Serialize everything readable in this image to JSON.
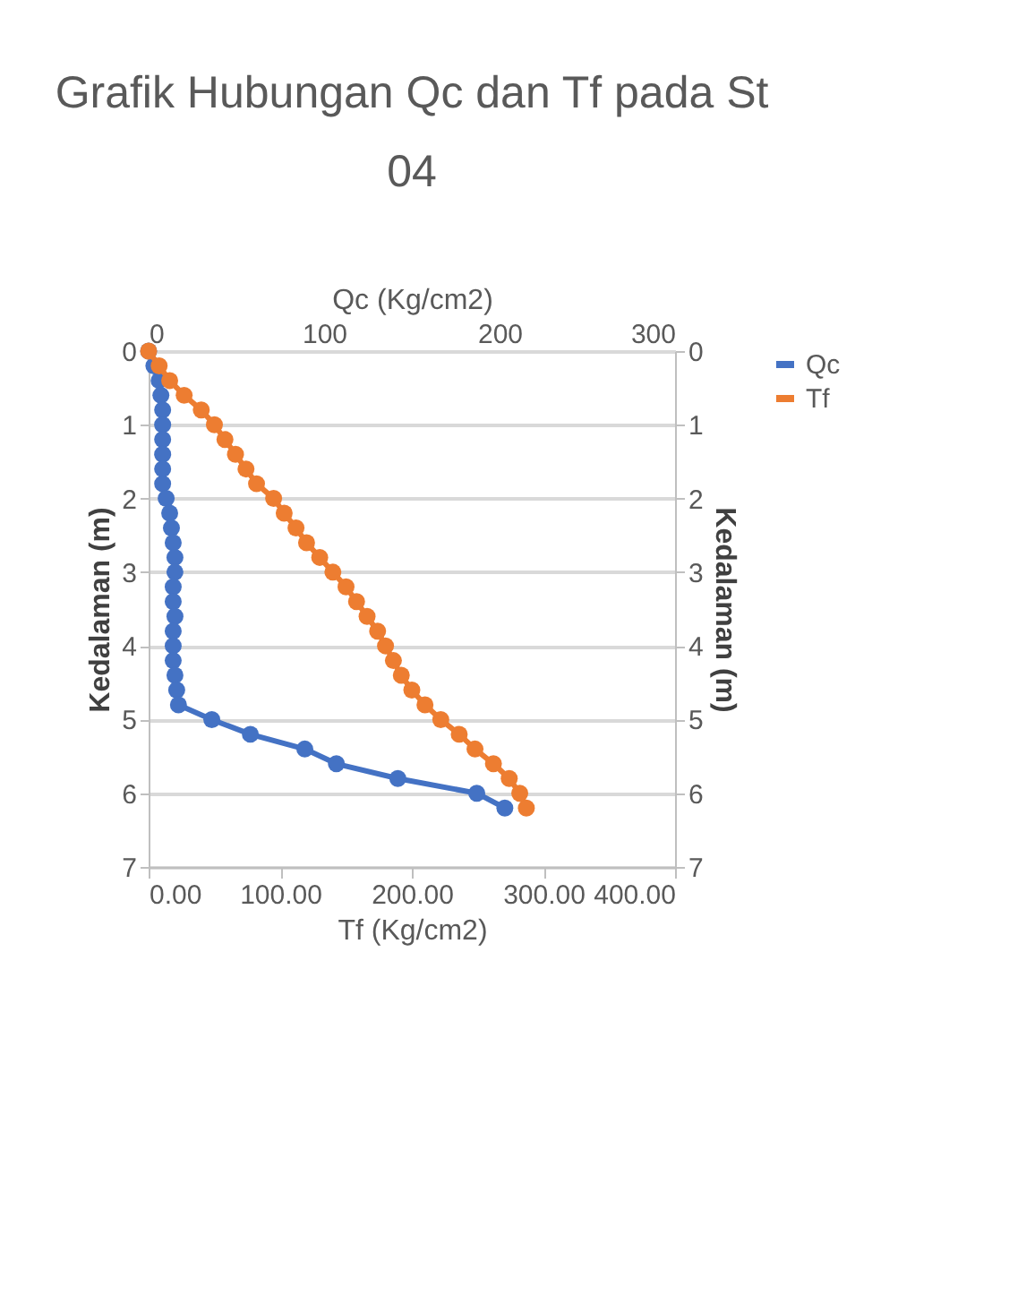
{
  "chart_data": {
    "type": "line",
    "orientation": "horizontal",
    "title": "Grafik Hubungan Qc dan Tf pada St 04",
    "xlabel": "Tf (Kg/cm2)",
    "x2label": "Qc (Kg/cm2)",
    "ylabel": "Kedalaman (m)",
    "y2label": "Kedalaman (m)",
    "x": [
      0,
      0.2,
      0.4,
      0.6,
      0.8,
      1.0,
      1.2,
      1.4,
      1.6,
      1.8,
      2.0,
      2.2,
      2.4,
      2.6,
      2.8,
      3.0,
      3.2,
      3.4,
      3.6,
      3.8,
      4.0,
      4.2,
      4.4,
      4.6,
      4.8,
      5.0,
      5.2,
      5.4,
      5.6,
      5.8,
      6.0,
      6.2
    ],
    "series": [
      {
        "name": "Qc",
        "color": "#4472c4",
        "axis": "x2",
        "values": [
          0,
          3,
          6,
          7,
          8,
          8,
          8,
          8,
          8,
          8,
          10,
          12,
          13,
          14,
          15,
          15,
          14,
          14,
          15,
          14,
          14,
          14,
          15,
          16,
          17,
          36,
          58,
          89,
          107,
          142,
          187,
          203
        ]
      },
      {
        "name": "Tf",
        "color": "#ed7d31",
        "values": [
          0,
          8,
          16,
          27,
          40,
          50,
          58,
          66,
          74,
          82,
          95,
          103,
          112,
          120,
          130,
          140,
          150,
          158,
          166,
          174,
          180,
          186,
          192,
          200,
          210,
          222,
          236,
          248,
          262,
          274,
          282,
          287
        ]
      }
    ],
    "xlim": [
      0,
      400
    ],
    "xticks": [
      {
        "value": 0,
        "label": "0.00"
      },
      {
        "value": 100,
        "label": "100.00"
      },
      {
        "value": 200,
        "label": "200.00"
      },
      {
        "value": 300,
        "label": "300.00"
      },
      {
        "value": 400,
        "label": "400.00"
      }
    ],
    "x2lim": [
      0,
      300
    ],
    "x2ticks": [
      0,
      100,
      200,
      300
    ],
    "ylim": [
      7,
      0
    ],
    "yticks": [
      0,
      1,
      2,
      3,
      4,
      5,
      6,
      7
    ],
    "y2lim": [
      7,
      0
    ],
    "y2ticks": [
      0,
      1,
      2,
      3,
      4,
      5,
      6,
      7
    ],
    "grid": "y",
    "legend": "right",
    "marker": "circle",
    "line_style": "solid"
  }
}
